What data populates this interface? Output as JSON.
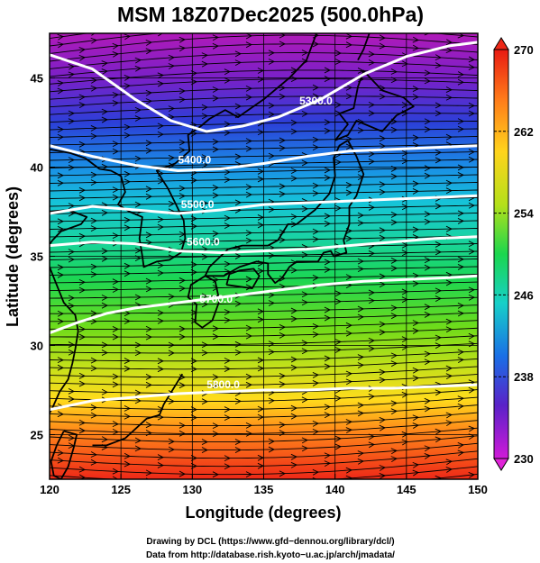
{
  "title": "MSM 18Z07Dec2025 (500.0hPa)",
  "xlabel": "Longitude (degrees)",
  "ylabel": "Latitude (degrees)",
  "footer": {
    "line1": "Drawing by DCL (https://www.gfd−dennou.org/library/dcl/)",
    "line2": "Data from http://database.rish.kyoto−u.ac.jp/arch/jmadata/"
  },
  "map": {
    "lon_range": [
      120,
      150
    ],
    "lat_range": [
      22.5,
      47.5
    ],
    "lon_ticks": [
      "120",
      "125",
      "130",
      "135",
      "140",
      "145",
      "150"
    ],
    "lat_ticks": [
      "25",
      "30",
      "35",
      "40",
      "45"
    ],
    "gridlines": true
  },
  "colorbar": {
    "min": 230,
    "max": 270,
    "tick_labels": [
      "270",
      "262",
      "254",
      "246",
      "238",
      "230"
    ],
    "tick_values": [
      270,
      262,
      254,
      246,
      238,
      230
    ]
  },
  "contours": [
    {
      "label": "5300.0",
      "value": 5300
    },
    {
      "label": "5400.0",
      "value": 5400
    },
    {
      "label": "5500.0",
      "value": 5500
    },
    {
      "label": "5600.0",
      "value": 5600
    },
    {
      "label": "5700.0",
      "value": 5700
    },
    {
      "label": "5800.0",
      "value": 5800
    }
  ],
  "colors": {
    "contour": "#ffffff",
    "streamline": "#000000",
    "coast": "#000000"
  }
}
